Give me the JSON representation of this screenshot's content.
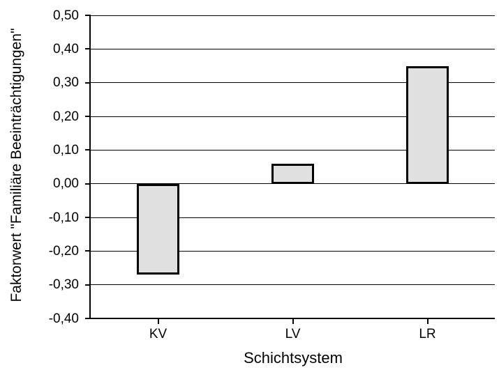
{
  "chart_data": {
    "type": "bar",
    "title": "",
    "xlabel": "Schichtsystem",
    "ylabel": "Faktorwert \"Familiäre Beeinträchtigungen\"",
    "categories": [
      "KV",
      "LV",
      "LR"
    ],
    "values": [
      -0.27,
      0.06,
      0.35
    ],
    "ylim": [
      -0.4,
      0.5
    ],
    "y_tick_step": 0.1,
    "y_ticks": [
      0.5,
      0.4,
      0.3,
      0.2,
      0.1,
      0.0,
      -0.1,
      -0.2,
      -0.3,
      -0.4
    ],
    "y_tick_labels": [
      "0,50",
      "0,40",
      "0,30",
      "0,20",
      "0,10",
      "0,00",
      "-0,10",
      "-0,20",
      "-0,30",
      "-0,40"
    ],
    "grid": "horizontal",
    "legend": "none",
    "bar_fill": "#e0e0e0",
    "bar_border": "#000000",
    "grid_color": "#000000",
    "axis_color": "#000000"
  }
}
